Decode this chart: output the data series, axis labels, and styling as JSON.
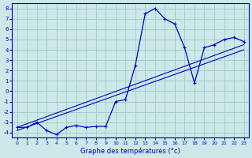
{
  "xlabel": "Graphe des températures (°c)",
  "bg_color": "#cce8e8",
  "line_color": "#0000cc",
  "grid_color": "#aacccc",
  "x_ticks": [
    0,
    1,
    2,
    3,
    4,
    5,
    6,
    7,
    8,
    9,
    10,
    11,
    12,
    13,
    14,
    15,
    16,
    17,
    18,
    19,
    20,
    21,
    22,
    23
  ],
  "y_ticks": [
    -4,
    -3,
    -2,
    -1,
    0,
    1,
    2,
    3,
    4,
    5,
    6,
    7,
    8
  ],
  "xlim": [
    -0.5,
    23.5
  ],
  "ylim": [
    -4.5,
    8.5
  ],
  "hours": [
    0,
    1,
    2,
    3,
    4,
    5,
    6,
    7,
    8,
    9,
    10,
    11,
    12,
    13,
    14,
    15,
    16,
    17,
    18,
    19,
    20,
    21,
    22,
    23
  ],
  "temps": [
    -3.5,
    -3.5,
    -3.0,
    -3.8,
    -4.2,
    -3.5,
    -3.3,
    -3.5,
    -3.4,
    -3.4,
    -1.0,
    -0.8,
    2.5,
    7.5,
    8.0,
    7.0,
    6.5,
    4.2,
    0.8,
    4.2,
    4.5,
    5.0,
    5.2,
    4.8
  ],
  "line1_x": [
    0,
    23
  ],
  "line1_y": [
    -3.5,
    4.5
  ],
  "line2_x": [
    0,
    23
  ],
  "line2_y": [
    -3.8,
    4.0
  ]
}
